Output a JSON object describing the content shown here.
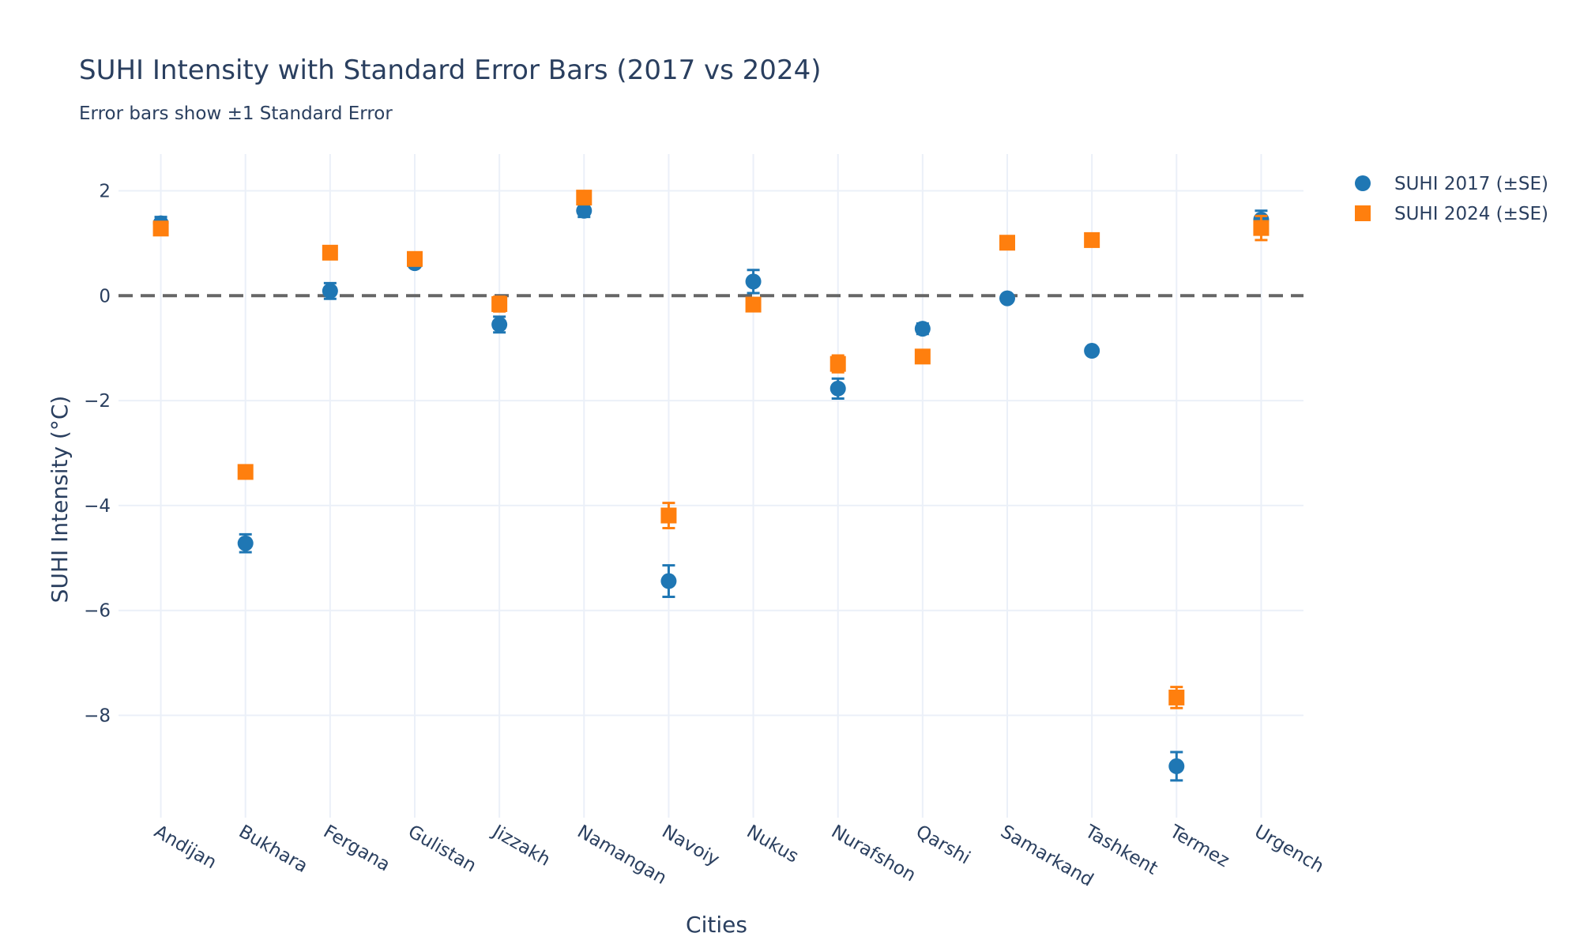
{
  "chart_data": {
    "type": "scatter",
    "title": "SUHI Intensity with Standard Error Bars (2017 vs 2024)",
    "subtitle": "Error bars show ±1 Standard Error",
    "xlabel": "Cities",
    "ylabel": "SUHI Intensity (°C)",
    "categories": [
      "Andijan",
      "Bukhara",
      "Fergana",
      "Gulistan",
      "Jizzakh",
      "Namangan",
      "Navoiy",
      "Nukus",
      "Nurafshon",
      "Qarshi",
      "Samarkand",
      "Tashkent",
      "Termez",
      "Urgench"
    ],
    "ylim": [
      -9.95,
      2.7
    ],
    "yticks": [
      2,
      0,
      -2,
      -4,
      -6,
      -8
    ],
    "ytick_labels": [
      "2",
      "0",
      "−2",
      "−4",
      "−6",
      "−8"
    ],
    "reference_line": 0,
    "grid": true,
    "legend_position": "top-right",
    "series": [
      {
        "name": "SUHI 2017 (±SE)",
        "marker": "circle",
        "color": "#1f77b4",
        "values": [
          1.38,
          -4.72,
          0.09,
          0.62,
          -0.55,
          1.62,
          -5.44,
          0.27,
          -1.77,
          -0.63,
          -0.05,
          -1.05,
          -8.97,
          1.45
        ],
        "errors": [
          0.12,
          0.17,
          0.15,
          0.07,
          0.15,
          0.12,
          0.3,
          0.22,
          0.19,
          0.1,
          0.05,
          0.07,
          0.27,
          0.17
        ]
      },
      {
        "name": "SUHI 2024 (±SE)",
        "marker": "square",
        "color": "#ff7f0e",
        "values": [
          1.28,
          -3.36,
          0.82,
          0.7,
          -0.16,
          1.87,
          -4.19,
          -0.17,
          -1.3,
          -1.16,
          1.01,
          1.06,
          -7.66,
          1.29
        ],
        "errors": [
          0.08,
          0.12,
          0.1,
          0.08,
          0.14,
          0.07,
          0.24,
          0.1,
          0.16,
          0.05,
          0.05,
          0.05,
          0.2,
          0.23
        ]
      }
    ]
  }
}
